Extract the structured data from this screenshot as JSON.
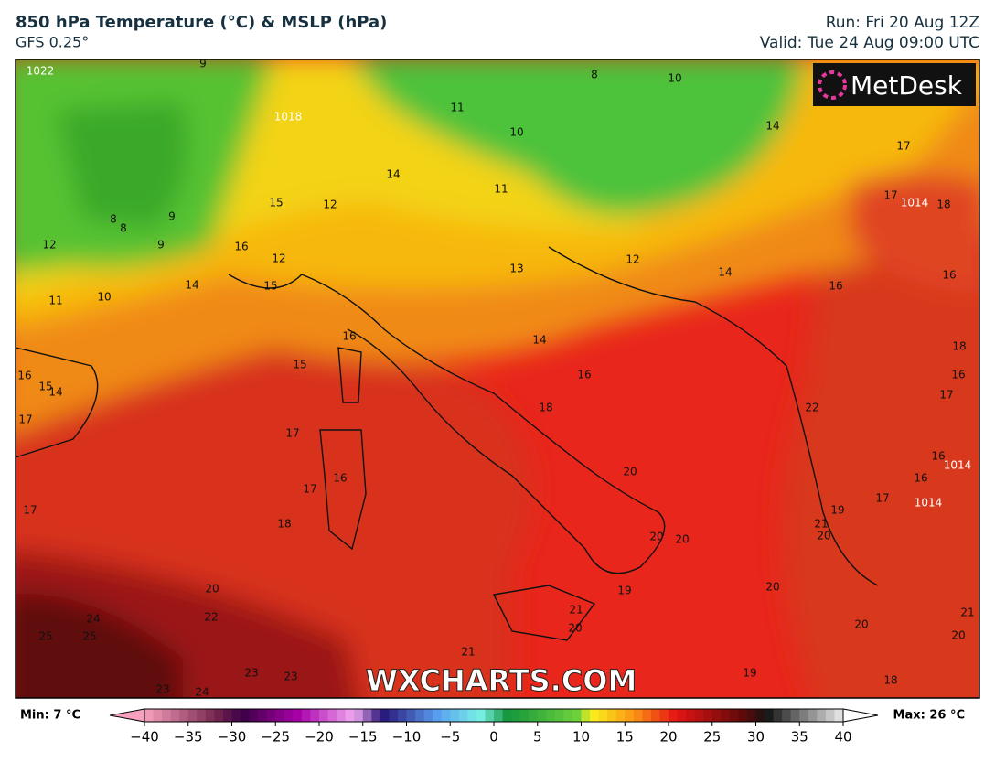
{
  "header": {
    "title": "850 hPa Temperature (°C) & MSLP (hPa)",
    "subtitle": "GFS 0.25°",
    "run": "Run: Fri 20 Aug 12Z",
    "valid": "Valid: Tue 24 Aug 09:00 UTC"
  },
  "logo": "MetDesk",
  "watermark": "WXCHARTS.COM",
  "map": {
    "contour_labels": [
      9,
      8,
      10,
      1022,
      1018,
      11,
      10,
      14,
      17,
      14,
      11,
      15,
      12,
      17,
      1014,
      18,
      8,
      8,
      9,
      9,
      12,
      16,
      12,
      13,
      12,
      14,
      16,
      14,
      15,
      16,
      11,
      10,
      16,
      14,
      18,
      15,
      16,
      15,
      14,
      16,
      16,
      18,
      22,
      17,
      17,
      17,
      16,
      16,
      20,
      16,
      17,
      17,
      17,
      18,
      21,
      20,
      20,
      20,
      19,
      20,
      20,
      19,
      22,
      21,
      20,
      24,
      25,
      25,
      20,
      21,
      19,
      23,
      23,
      23,
      24,
      18,
      20,
      21,
      1014,
      1014
    ]
  },
  "colorbar": {
    "min_label": "Min: 7 °C",
    "max_label": "Max: 26 °C",
    "ticks": [
      {
        "value": -40,
        "label": "−40"
      },
      {
        "value": -35,
        "label": "−35"
      },
      {
        "value": -30,
        "label": "−30"
      },
      {
        "value": -25,
        "label": "−25"
      },
      {
        "value": -20,
        "label": "−20"
      },
      {
        "value": -15,
        "label": "−15"
      },
      {
        "value": -10,
        "label": "−10"
      },
      {
        "value": -5,
        "label": "−5"
      },
      0,
      5,
      10,
      15,
      20,
      25,
      30,
      35,
      40
    ]
  }
}
